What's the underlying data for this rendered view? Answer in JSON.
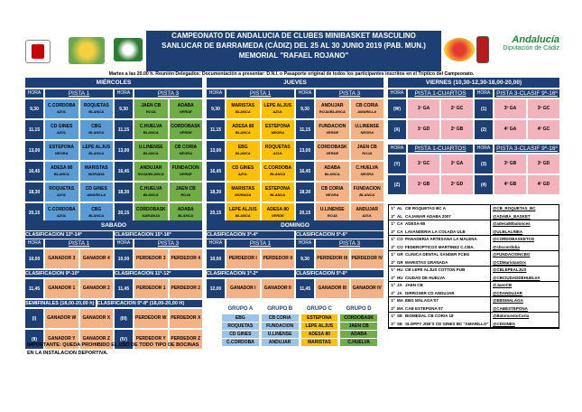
{
  "title": {
    "line1": "CAMPEONATO DE ANDALUCIA DE CLUBES MINIBASKET MASCULINO",
    "line2": "SANLUCAR DE BARRAMEDA (CÁDIZ) DEL 25 AL 30 JUNIO 2019 (PAB. MUN.)",
    "line3": "MEMORIAL \"RAFAEL ROJANO\""
  },
  "notice": "Martes a las 20.00 h. Reunión Delegados: Documentación a presentar: D.N.I. o Pasaporte original de todos los participantes inscritos en el Tríptico del Campeonato.",
  "logos": {
    "right": "Andalucía",
    "right_sub": "Diputación de Cádiz"
  },
  "hora": "HORA",
  "miercoles": {
    "day": "MIÉRCOLES",
    "pistas": [
      "PISTA 1",
      "PISTA 3"
    ],
    "rows": [
      {
        "h": "9,30",
        "a": [
          "C.CORDOBA",
          "AZUL"
        ],
        "b": [
          "ROQUETAS",
          "BLANCA"
        ],
        "h2": "9,30",
        "c": [
          "JAEN CB",
          "ROJA"
        ],
        "d": [
          "ADABA",
          "VERDE"
        ]
      },
      {
        "h": "11,15",
        "a": [
          "CD GINES",
          "AZUL"
        ],
        "b": [
          "CBG",
          "BLANCA"
        ],
        "h2": "11,15",
        "c": [
          "C.HUELVA",
          "BLANCA"
        ],
        "d": [
          "CORDOBASK",
          "VERDE"
        ]
      },
      {
        "h": "13,00",
        "a": [
          "ESTEPONA",
          "NEGRA"
        ],
        "b": [
          "LEPE ALJUS",
          "BLANCA"
        ],
        "h2": "13,00",
        "c": [
          "U.LINENSE",
          "BLANCA"
        ],
        "d": [
          "CB CORIA",
          "NEGRA"
        ]
      },
      {
        "h": "16,45",
        "a": [
          "ADESA 80",
          "BLANCA"
        ],
        "b": [
          "MARISTAS",
          "MORADA"
        ],
        "h2": "16,45",
        "c": [
          "ANDUJAR",
          "ROJA/BLANCA"
        ],
        "d": [
          "FUNDACION",
          "VERDE"
        ]
      },
      {
        "h": "18,30",
        "a": [
          "ROQUETAS",
          "AZUL"
        ],
        "b": [
          "CD GINES",
          "AMARILLA"
        ],
        "h2": "18,30",
        "c": [
          "C.HUELVA",
          "BLANCA"
        ],
        "d": [
          "JAEN CB",
          "ROJA"
        ]
      },
      {
        "h": "20,15",
        "a": [
          "C.CORDOBA",
          "AZUL"
        ],
        "b": [
          "CBG",
          "BLANCA"
        ],
        "h2": "20,15",
        "c": [
          "CORDOBASK",
          "NARANJA"
        ],
        "d": [
          "ADABA",
          "BLANCA"
        ]
      }
    ]
  },
  "jueves": {
    "day": "JUEVES",
    "pistas": [
      "PISTA 1",
      "PISTA 3"
    ],
    "rows": [
      {
        "h": "9,30",
        "a": [
          "MARISTAS",
          "BLANCA"
        ],
        "b": [
          "LEPE ALJUS",
          "AZUL"
        ],
        "h2": "9,30",
        "c": [
          "ANDUJAR",
          "ROJA/BLANCA"
        ],
        "d": [
          "CB CORIA",
          "AMARILLA"
        ]
      },
      {
        "h": "11,15",
        "a": [
          "ADESA 80",
          "BLANCA"
        ],
        "b": [
          "ESTEPONA",
          "NEGRA"
        ],
        "h2": "11,15",
        "c": [
          "FUNDACION",
          "VERDE"
        ],
        "d": [
          "U.LINENSE",
          "NEGRA"
        ]
      },
      {
        "h": "13,00",
        "a": [
          "EBG",
          "BLANCA"
        ],
        "b": [
          "ROQUETAS",
          "AZUL"
        ],
        "h2": "13,00",
        "c": [
          "CORDOBASK",
          "VERDE"
        ],
        "d": [
          "JAEN CB",
          "ROJA"
        ]
      },
      {
        "h": "16,45",
        "a": [
          "CD GINES",
          "AZUL"
        ],
        "b": [
          "C.CORDOBA",
          "BLANCA"
        ],
        "h2": "16,45",
        "c": [
          "ADABA",
          "BLANCA"
        ],
        "d": [
          "C.HUELVA",
          "NEGRA"
        ]
      },
      {
        "h": "18,30",
        "a": [
          "MARISTAS",
          "MORADA"
        ],
        "b": [
          "ESTEPONA",
          "BLANCA"
        ],
        "h2": "18,30",
        "c": [
          "CB CORIA",
          "NEGRA"
        ],
        "d": [
          "FUNDACION",
          "BLANCA"
        ]
      },
      {
        "h": "20,15",
        "a": [
          "LEPE ALJUS",
          "BLANCA"
        ],
        "b": [
          "ADESA 80",
          "VERDE"
        ],
        "h2": "20,15",
        "c": [
          "U.LINENSE",
          "ROJA"
        ],
        "d": [
          "ANDUJAR",
          "AZUL"
        ]
      }
    ]
  },
  "viernes": {
    "day": "VIERNES (10,30-12,30-18,00-20,00)",
    "pistas": [
      "PISTA 1-CUARTOS",
      "PISTA 3-CLASIF 9º-16º"
    ],
    "pistas2": [
      "PISTA 1-CUARTOS",
      "PISTA 3-CLASIF 9º-16º"
    ],
    "rows": [
      {
        "h": "(W)",
        "a": "1º GA",
        "b": "2º GC",
        "h2": "(1)",
        "c": "3º GA",
        "d": "3º GC"
      },
      {
        "h": "(X)",
        "a": "1º GD",
        "b": "2º GB",
        "h2": "(2)",
        "c": "4º GA",
        "d": "4º GC"
      }
    ],
    "rows2": [
      {
        "h": "(Y)",
        "a": "1º GC",
        "b": "2º GA",
        "h2": "(3)",
        "c": "3º GB",
        "d": "3º GD"
      },
      {
        "h": "(Z)",
        "a": "1º GB",
        "b": "2º GD",
        "h2": "(4)",
        "c": "4º GB",
        "d": "4º GD"
      }
    ]
  },
  "sabado": {
    "day": "SABADO",
    "l1": "CLASIFICACION 13º-14º",
    "l2": "CLASIFICACION 15º-16º",
    "p1": "PISTA 1",
    "p3": "PISTA 3",
    "r1": {
      "h": "10,00",
      "a": "GANADOR 3",
      "b": "GANADOR 4",
      "h2": "10,00",
      "c": "PERDEDOR 3",
      "d": "PERDEDOR 4"
    },
    "l3": "CLASIFICACION 9º-10º",
    "l4": "CLASIFICACION 11º-12º",
    "r2": {
      "h": "11,45",
      "a": "GANADOR 1",
      "b": "GANADOR 2",
      "h2": "11,45",
      "c": "PERDEDOR 1",
      "d": "PERDEDOR 2"
    },
    "l5": "SEMIFINALES (18,00-20,00 h)",
    "l6": "CLASIFICACION 5º-8º (18,00-20,00 H)",
    "r3": {
      "h": "(I)",
      "a": "GANADOR W",
      "b": "GANADOR X",
      "h2": "(III)",
      "c": "PERDEDOR W",
      "d": "PERDEDOR X"
    },
    "r4": {
      "h": "(II)",
      "a": "GANADOR Y",
      "b": "GANADOR Z",
      "h2": "(IV)",
      "c": "PERDEDOR Y",
      "d": "PERDEDOR Z"
    }
  },
  "domingo": {
    "day": "DOMINGO",
    "l1": "CLASIFICACION 3º-4º",
    "l2": "CLASIFICACION 5º-6º",
    "p1": "PISTA 1",
    "p3": "PISTA 3",
    "r1": {
      "h": "10,00",
      "a": "PERDEDOR I",
      "b": "PERDEDOR II",
      "h2": "9,30",
      "c": "PERDEDOR III",
      "d": "PERDEDOR IV"
    },
    "l3": "CLASIFICACION 1º-2º",
    "l4": "CLASIFICACION 5º-6º",
    "r2": {
      "h": "12,00",
      "a": "GANADOR I",
      "b": "GANADOR II",
      "h2": "11,45",
      "c": "GANADOR III",
      "d": "GANADOR IV"
    }
  },
  "grupos": {
    "heads": [
      "GRUPO A",
      "GRUPO B",
      "GRUPO C",
      "GRUPO D"
    ],
    "rows": [
      [
        "EBG",
        "CB CORIA",
        "ESTEPONA",
        "CORDOBASK"
      ],
      [
        "ROQUETAS",
        "FUNDACION",
        "LEPE ALJUS",
        "JAEN CB"
      ],
      [
        "CD GINES",
        "U.LINENSE",
        "ADESA 80",
        "ADABA"
      ],
      [
        "C.CORDOBA",
        "ANDUJAR",
        "MARISTAS",
        "C.HUELVA"
      ]
    ]
  },
  "footer": "IMPORTANTE: QUEDA PROHIBIDO EL USO DE TODO TIPO DE BOCINAS EN LA INSTALACION DEPORTIVA.",
  "clubs": [
    [
      "1º",
      "AL",
      "CB ROQUETAS BC A",
      "@CB_ROQUETAS_BC"
    ],
    [
      "2º",
      "AL",
      "CAJAMAR ADABA 2007",
      "@ADABA_BASKET"
    ],
    [
      "1º",
      "CA",
      "ADESA-80",
      "@adesa80balonces"
    ],
    [
      "2º",
      "CA",
      "LAVANDERIA LA COLADA ULB",
      "@ULBLALINEA"
    ],
    [
      "1º",
      "CO",
      "PANADERIA ARTESANA LA MALENA",
      "@CORDOBASKETCD"
    ],
    [
      "2º",
      "CO",
      "FEDEROPTICOS MARTINEZ C.CBA.",
      "@cbccordoba"
    ],
    [
      "1º",
      "GR",
      "CLINICA DENTAL SANDER FCBG",
      "@FUNDACIONCBG"
    ],
    [
      "2º",
      "GR",
      "MARISTAS GRANADA",
      "@CDMaristasGrx"
    ],
    [
      "1º",
      "HU",
      "CB LEPE ALJUS COTTON PUB",
      "@CBLEPEALJUS"
    ],
    [
      "2º",
      "HU",
      "CIUDAD DE HUELVA",
      "@CBCIUDADDEHUELVA"
    ],
    [
      "1º",
      "JA",
      "JAEN CB",
      "@JaenCB"
    ],
    [
      "2º",
      "JA",
      "DIRROSER CD ANDUJAR",
      "@CDANDUJAR"
    ],
    [
      "1º",
      "MA",
      "EBG MÁLAGA'07",
      "@EBGMALAGA"
    ],
    [
      "2º",
      "MA",
      "CAB ESTEPONA 07",
      "@CABESTEPONA"
    ],
    [
      "1º",
      "SE",
      "BIOMEDAL CB CORIA 18",
      "@BaloncestoCoria"
    ],
    [
      "2º",
      "SE",
      "SLOPPY JOE'S CD GINES BC \"AMARILLO\"",
      "@CDGINES"
    ]
  ]
}
